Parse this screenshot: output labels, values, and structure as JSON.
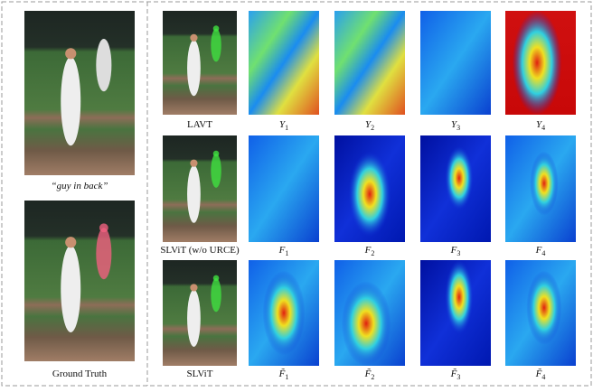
{
  "left": {
    "query": "“guy in back”",
    "ground_truth": "Ground Truth"
  },
  "rows": [
    {
      "method": "LAVT",
      "maps": [
        {
          "base": "Y",
          "index": "1"
        },
        {
          "base": "Y",
          "index": "2"
        },
        {
          "base": "Y",
          "index": "3"
        },
        {
          "base": "Y",
          "index": "4"
        }
      ]
    },
    {
      "method": "SLViT (w/o URCE)",
      "maps": [
        {
          "base": "F",
          "index": "1"
        },
        {
          "base": "F",
          "index": "2"
        },
        {
          "base": "F",
          "index": "3"
        },
        {
          "base": "F",
          "index": "4"
        }
      ]
    },
    {
      "method": "SLViT",
      "maps": [
        {
          "base": "F̃",
          "index": "1"
        },
        {
          "base": "F̃",
          "index": "2"
        },
        {
          "base": "F̃",
          "index": "3"
        },
        {
          "base": "F̃",
          "index": "4"
        }
      ]
    }
  ]
}
